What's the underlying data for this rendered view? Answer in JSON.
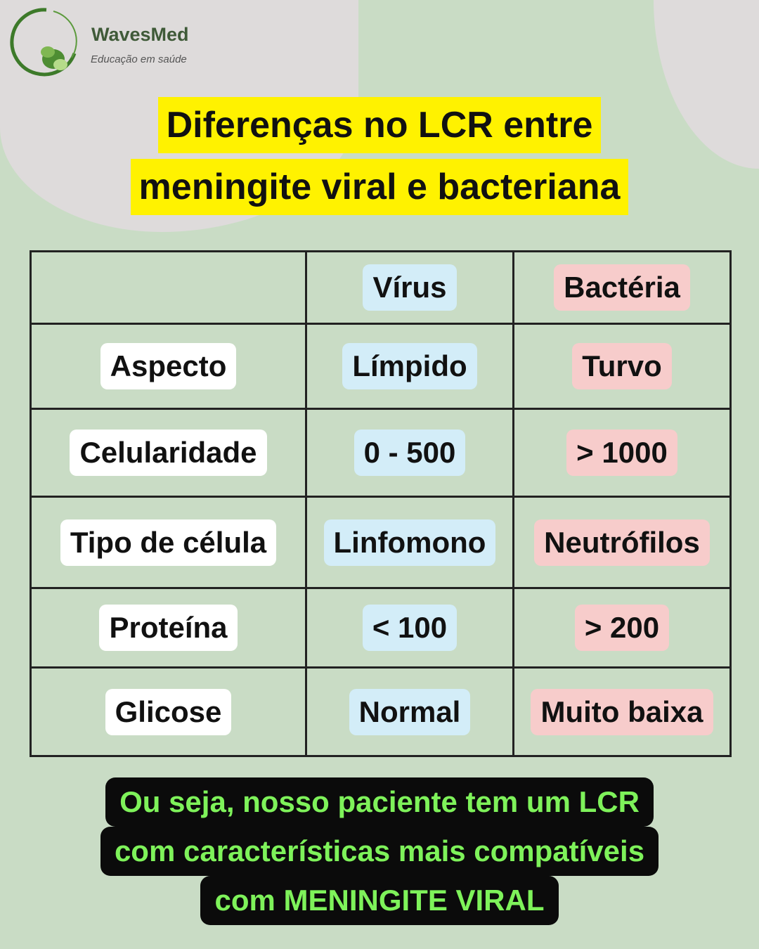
{
  "brand": {
    "name": "WavesMed",
    "tagline": "Educação em saúde"
  },
  "title": {
    "line1": "Diferenças no LCR entre",
    "line2": "meningite viral e bacteriana"
  },
  "table": {
    "headers": [
      "",
      "Vírus",
      "Bactéria"
    ],
    "rows": [
      {
        "label": "Aspecto",
        "virus": "Límpido",
        "bacteria": "Turvo"
      },
      {
        "label": "Celularidade",
        "virus": "0 - 500",
        "bacteria": "> 1000"
      },
      {
        "label": "Tipo de célula",
        "virus": "Linfomono",
        "bacteria": "Neutrófilos"
      },
      {
        "label": "Proteína",
        "virus": "< 100",
        "bacteria": "> 200"
      },
      {
        "label": "Glicose",
        "virus": "Normal",
        "bacteria": "Muito baixa"
      }
    ]
  },
  "conclusion": {
    "line1": "Ou seja, nosso paciente tem um LCR",
    "line2": "com características mais compatíveis",
    "line3": "com MENINGITE VIRAL"
  },
  "colors": {
    "background": "#c9dcc5",
    "title_highlight": "#fff200",
    "virus": "#d3edf8",
    "bacteria": "#f7cccb",
    "conclusion_text": "#7ef25a"
  }
}
